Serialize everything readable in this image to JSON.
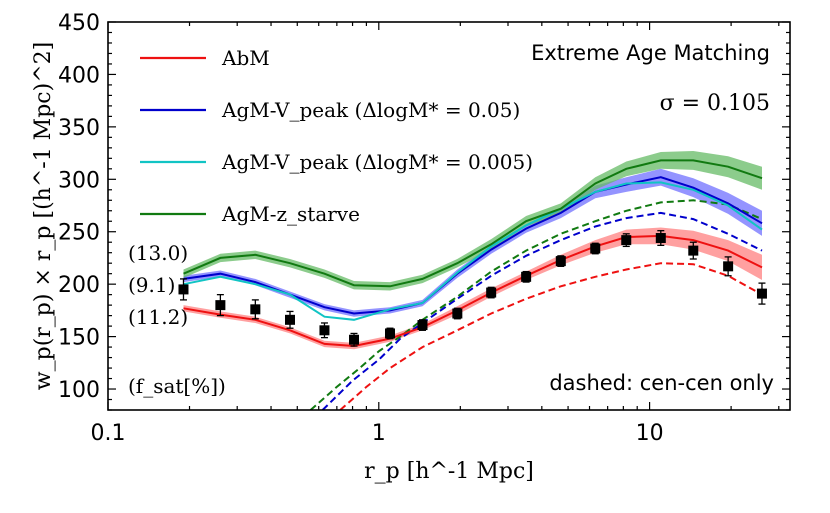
{
  "chart_data": {
    "type": "line",
    "title": "",
    "xlabel": "r_p [h^-1 Mpc]",
    "ylabel": "w_p(r_p) × r_p [(h^-1 Mpc)^2]",
    "xscale": "log",
    "xlim": [
      0.1,
      33
    ],
    "ylim": [
      80,
      450
    ],
    "x_ticks": [
      0.1,
      1,
      10
    ],
    "x_tick_labels": [
      "0.1",
      "1",
      "10"
    ],
    "y_ticks": [
      100,
      150,
      200,
      250,
      300,
      350,
      400,
      450
    ],
    "y_tick_labels": [
      "100",
      "150",
      "200",
      "250",
      "300",
      "350",
      "400",
      "450"
    ],
    "legend_position": "top-left",
    "annotations": {
      "method": "Extreme Age Matching",
      "sigma": "σ = 0.105",
      "dashed_note": "dashed: cen-cen only",
      "fsat_label": "(f_sat[%])",
      "fsat_values": [
        {
          "text": "(13.0)",
          "color": "#007a00"
        },
        {
          "text": "(9.1)",
          "color": "#0000cc"
        },
        {
          "text": "(11.2)",
          "color": "#ee0000"
        }
      ]
    },
    "series": [
      {
        "name": "AbM",
        "color": "#ee1111",
        "band_color": "#ff8080",
        "x": [
          0.19,
          0.26,
          0.35,
          0.47,
          0.63,
          0.81,
          1.1,
          1.45,
          1.95,
          2.6,
          3.5,
          4.7,
          6.3,
          8.2,
          11,
          14.5,
          19.5,
          26
        ],
        "values": [
          177,
          171,
          166,
          156,
          143,
          141,
          148,
          159,
          175,
          192,
          208,
          223,
          236,
          245,
          246,
          242,
          232,
          216
        ],
        "band": [
          3,
          3,
          3,
          3,
          3,
          3,
          3,
          3,
          4,
          4,
          4,
          5,
          6,
          7,
          8,
          9,
          10,
          12
        ]
      },
      {
        "name": "AgM-V_peak (ΔlogM* = 0.05)",
        "color": "#0000cc",
        "band_color": "#7070ff",
        "x": [
          0.19,
          0.26,
          0.35,
          0.47,
          0.63,
          0.81,
          1.1,
          1.45,
          1.95,
          2.6,
          3.5,
          4.7,
          6.3,
          8.2,
          11,
          14.5,
          19.5,
          26
        ],
        "values": [
          205,
          210,
          202,
          190,
          178,
          172,
          175,
          182,
          210,
          233,
          253,
          268,
          288,
          295,
          302,
          292,
          277,
          258
        ],
        "band": [
          3,
          3,
          3,
          3,
          3,
          3,
          3,
          3,
          4,
          4,
          4,
          5,
          6,
          7,
          8,
          9,
          10,
          12
        ]
      },
      {
        "name": "AgM-V_peak (ΔlogM* = 0.005)",
        "color": "#11c4c4",
        "x": [
          0.19,
          0.26,
          0.35,
          0.47,
          0.63,
          0.81,
          1.1,
          1.45,
          1.95,
          2.6,
          3.5,
          4.7,
          6.3,
          8.2,
          11,
          14.5,
          19.5,
          26
        ],
        "values": [
          200,
          207,
          200,
          190,
          169,
          166,
          176,
          182,
          211,
          236,
          256,
          272,
          288,
          296,
          297,
          290,
          275,
          252
        ]
      },
      {
        "name": "AgM-z_starve",
        "color": "#117a11",
        "band_color": "#66bb66",
        "x": [
          0.19,
          0.26,
          0.35,
          0.47,
          0.63,
          0.81,
          1.1,
          1.45,
          1.95,
          2.6,
          3.5,
          4.7,
          6.3,
          8.2,
          11,
          14.5,
          19.5,
          26
        ],
        "values": [
          210,
          225,
          228,
          220,
          210,
          199,
          198,
          205,
          220,
          238,
          260,
          272,
          296,
          310,
          318,
          318,
          312,
          301
        ],
        "band": [
          4,
          4,
          4,
          4,
          4,
          4,
          4,
          4,
          4,
          5,
          5,
          5,
          6,
          7,
          8,
          9,
          10,
          11
        ]
      }
    ],
    "dashed_series": [
      {
        "color": "#ee1111",
        "x": [
          0.72,
          0.9,
          1.1,
          1.45,
          1.95,
          2.6,
          3.5,
          4.7,
          6.3,
          8.2,
          11,
          14.5,
          19.5,
          26
        ],
        "values": [
          80,
          102,
          120,
          140,
          156,
          172,
          186,
          198,
          207,
          214,
          220,
          219,
          208,
          190
        ]
      },
      {
        "color": "#0000cc",
        "x": [
          0.62,
          0.8,
          1.0,
          1.2,
          1.45,
          1.95,
          2.6,
          3.5,
          4.7,
          6.3,
          8.2,
          11,
          14.5,
          19.5,
          26
        ],
        "values": [
          80,
          108,
          128,
          148,
          163,
          186,
          208,
          227,
          242,
          255,
          263,
          268,
          262,
          248,
          232
        ]
      },
      {
        "color": "#117a11",
        "x": [
          0.56,
          0.7,
          0.85,
          1.0,
          1.2,
          1.45,
          1.95,
          2.6,
          3.5,
          4.7,
          6.3,
          8.2,
          11,
          14.5,
          19.5,
          26
        ],
        "values": [
          80,
          102,
          120,
          136,
          150,
          166,
          188,
          212,
          232,
          248,
          260,
          270,
          278,
          280,
          276,
          262
        ]
      }
    ],
    "observed_data": {
      "name": "observations",
      "color": "#000000",
      "x": [
        0.19,
        0.26,
        0.35,
        0.47,
        0.63,
        0.81,
        1.1,
        1.45,
        1.95,
        2.6,
        3.5,
        4.7,
        6.3,
        8.2,
        11,
        14.5,
        19.5,
        26
      ],
      "values": [
        195,
        180,
        176,
        166,
        156,
        147,
        153,
        161,
        172,
        192,
        207,
        222,
        234,
        242,
        244,
        232,
        217,
        191
      ],
      "errors": [
        10,
        10,
        9,
        8,
        7,
        6,
        5,
        5,
        5,
        5,
        5,
        5,
        5,
        6,
        7,
        8,
        9,
        10
      ]
    }
  }
}
